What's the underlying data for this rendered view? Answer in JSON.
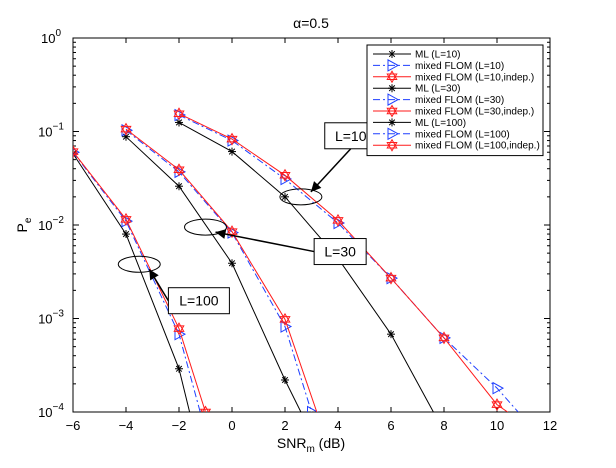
{
  "chart_data": {
    "type": "line",
    "title": "α=0.5",
    "xlabel": "SNR",
    "xlabel_subscript": "m",
    "xlabel_suffix": " (dB)",
    "ylabel": "P",
    "ylabel_subscript": "e",
    "xlim": [
      -6,
      12
    ],
    "ylim": [
      0.0001,
      1
    ],
    "yscale": "log",
    "grid": false,
    "legend_position": "top-right",
    "x_ticks": [
      -6,
      -4,
      -2,
      0,
      2,
      4,
      6,
      8,
      10,
      12
    ],
    "x_tick_labels": [
      "−6",
      "−4",
      "−2",
      "0",
      "2",
      "4",
      "6",
      "8",
      "10",
      "12"
    ],
    "y_ticks": [
      1,
      0.1,
      0.01,
      0.001,
      0.0001
    ],
    "y_tick_labels": [
      {
        "base": "10",
        "exp": "0"
      },
      {
        "base": "10",
        "exp": "−1"
      },
      {
        "base": "10",
        "exp": "−2"
      },
      {
        "base": "10",
        "exp": "−3"
      },
      {
        "base": "10",
        "exp": "−4"
      }
    ],
    "series": [
      {
        "name": "ML (L=10)",
        "color": "#000000",
        "dash": "solid",
        "marker": "star",
        "points": [
          [
            -2,
            0.125
          ],
          [
            0,
            0.061
          ],
          [
            2,
            0.02
          ],
          [
            4,
            0.0044
          ],
          [
            6,
            0.00068
          ],
          [
            7.6,
            0.0001
          ]
        ]
      },
      {
        "name": "mixed FLOM (L=10)",
        "color": "#1f3fff",
        "dash": "dashdot",
        "marker": "triangle-right",
        "points": [
          [
            -2,
            0.15
          ],
          [
            0,
            0.08
          ],
          [
            2,
            0.031
          ],
          [
            4,
            0.0105
          ],
          [
            6,
            0.0027
          ],
          [
            8,
            0.00062
          ],
          [
            10,
            0.00018
          ],
          [
            10.8,
            0.0001
          ]
        ]
      },
      {
        "name": "mixed FLOM (L=10,indep.)",
        "color": "#ff1a1a",
        "dash": "solid",
        "marker": "hexagram",
        "points": [
          [
            -2,
            0.155
          ],
          [
            0,
            0.083
          ],
          [
            2,
            0.034
          ],
          [
            4,
            0.0112
          ],
          [
            6,
            0.0027
          ],
          [
            8,
            0.00062
          ],
          [
            10,
            0.00012
          ],
          [
            10.4,
            0.0001
          ]
        ]
      },
      {
        "name": "ML (L=30)",
        "color": "#000000",
        "dash": "solid",
        "marker": "star",
        "points": [
          [
            -4,
            0.088
          ],
          [
            -2,
            0.026
          ],
          [
            0,
            0.0039
          ],
          [
            2,
            0.00022
          ],
          [
            2.6,
            0.0001
          ]
        ]
      },
      {
        "name": "mixed FLOM (L=30)",
        "color": "#1f3fff",
        "dash": "dashdot",
        "marker": "triangle-right",
        "points": [
          [
            -4,
            0.103
          ],
          [
            -2,
            0.037
          ],
          [
            0,
            0.0083
          ],
          [
            2,
            0.00082
          ],
          [
            3.0,
            0.0001
          ]
        ]
      },
      {
        "name": "mixed FLOM (L=30,indep.)",
        "color": "#ff1a1a",
        "dash": "solid",
        "marker": "hexagram",
        "points": [
          [
            -4,
            0.106
          ],
          [
            -2,
            0.039
          ],
          [
            0,
            0.0085
          ],
          [
            2,
            0.00098
          ],
          [
            3.2,
            0.0001
          ]
        ]
      },
      {
        "name": "ML (L=100)",
        "color": "#000000",
        "dash": "solid",
        "marker": "star",
        "points": [
          [
            -6,
            0.058
          ],
          [
            -4,
            0.008
          ],
          [
            -2,
            0.00029
          ],
          [
            -1.6,
            0.0001
          ]
        ]
      },
      {
        "name": "mixed FLOM (L=100)",
        "color": "#1f3fff",
        "dash": "dashdot",
        "marker": "triangle-right",
        "points": [
          [
            -6,
            0.06
          ],
          [
            -4,
            0.011
          ],
          [
            -2,
            0.00068
          ],
          [
            -1.2,
            0.0001
          ]
        ]
      },
      {
        "name": "mixed FLOM (L=100,indep.)",
        "color": "#ff1a1a",
        "dash": "solid",
        "marker": "hexagram",
        "points": [
          [
            -6,
            0.061
          ],
          [
            -4,
            0.0115
          ],
          [
            -2,
            0.00078
          ],
          [
            -1.0,
            0.0001
          ]
        ]
      }
    ],
    "annotations": [
      {
        "text": "L=10",
        "ellipse_center": [
          2.6,
          0.02
        ],
        "box_anchor": [
          3.5,
          0.09
        ]
      },
      {
        "text": "L=30",
        "ellipse_center": [
          -1.0,
          0.0095
        ],
        "box_anchor": [
          3.1,
          0.0052
        ]
      },
      {
        "text": "L=100",
        "ellipse_center": [
          -3.5,
          0.0038
        ],
        "box_anchor": [
          -2.4,
          0.00155
        ]
      }
    ]
  }
}
